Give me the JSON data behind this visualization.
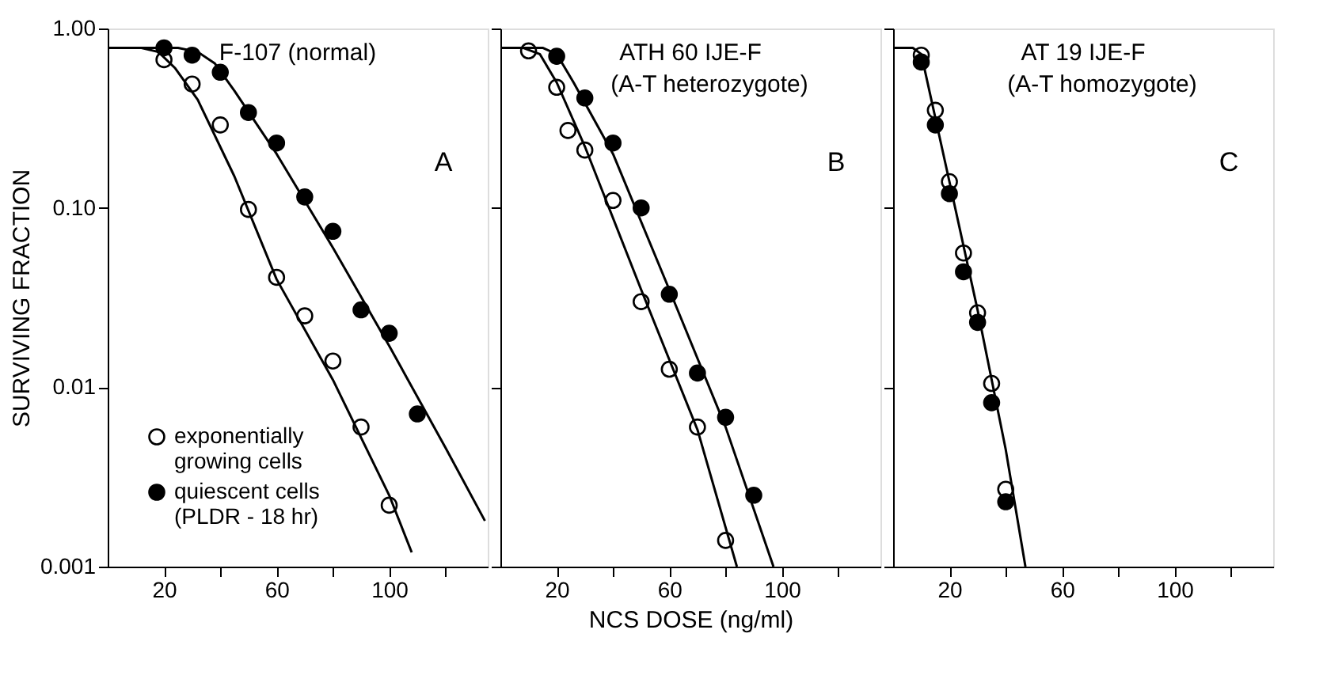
{
  "chart_data": [
    {
      "type": "scatter",
      "title": "F-107 (normal)",
      "annotations": [
        "A"
      ],
      "ylabel": "SURVIVING  FRACTION",
      "log": true,
      "grid": false,
      "legend": "bottom left",
      "marker": "circle",
      "xlim": [
        0,
        135
      ],
      "xticks": [
        20,
        {
          "value": 40,
          "label": null
        },
        60,
        {
          "value": 80,
          "label": null
        },
        100,
        {
          "value": 120,
          "label": null
        }
      ],
      "ylim": [
        0.001,
        1
      ],
      "yticks": [
        {
          "value": 0.001,
          "label": "0.001"
        },
        {
          "value": 0.01,
          "label": "0.01"
        },
        {
          "value": 0.1,
          "label": "0.10"
        },
        {
          "value": 1,
          "label": "1.00"
        }
      ],
      "series": [
        {
          "name": "exponentially growing cells",
          "color": "#ffffff",
          "x": [
            20,
            30,
            40,
            50,
            60,
            70,
            80,
            90,
            100
          ],
          "values": [
            0.67,
            0.49,
            0.29,
            0.098,
            0.041,
            0.025,
            0.014,
            0.006,
            0.0022
          ]
        },
        {
          "name": "quiescent cells (PLDR - 18 hr)",
          "color": "#000000",
          "x": [
            20,
            30,
            40,
            50,
            60,
            70,
            80,
            90,
            100,
            110
          ],
          "values": [
            0.78,
            0.71,
            0.57,
            0.34,
            0.23,
            0.115,
            0.074,
            0.027,
            0.02,
            0.0071
          ]
        },
        {
          "type": "line",
          "marker": "none",
          "color": "#000000",
          "x": [
            0,
            12,
            18,
            24,
            32,
            45,
            60,
            80,
            100,
            108
          ],
          "values": [
            0.78,
            0.78,
            0.74,
            0.6,
            0.4,
            0.15,
            0.04,
            0.011,
            0.0025,
            0.0012
          ]
        },
        {
          "type": "line",
          "marker": "none",
          "color": "#000000",
          "x": [
            0,
            25,
            32,
            38,
            45,
            60,
            80,
            100,
            120,
            134
          ],
          "values": [
            0.78,
            0.78,
            0.74,
            0.64,
            0.45,
            0.2,
            0.06,
            0.017,
            0.0046,
            0.0018
          ]
        }
      ]
    },
    {
      "type": "scatter",
      "title": "ATH 60 IJE-F",
      "subtitle": "(A-T heterozygote)",
      "annotations": [
        "B"
      ],
      "xlabel": "NCS     DOSE     (ng/ml)",
      "log": true,
      "grid": false,
      "marker": "circle",
      "tick_labels": "x",
      "xlim": [
        0,
        135
      ],
      "xticks": [
        20,
        {
          "value": 40,
          "label": null
        },
        60,
        {
          "value": 80,
          "label": null
        },
        100,
        {
          "value": 120,
          "label": null
        }
      ],
      "ylim": [
        0.001,
        1
      ],
      "yticks": [
        {
          "value": 0.001,
          "label": null
        },
        {
          "value": 0.01,
          "label": null
        },
        {
          "value": 0.1,
          "label": null
        },
        {
          "value": 1,
          "label": null
        }
      ],
      "series": [
        {
          "color": "#ffffff",
          "x": [
            10,
            20,
            24,
            30,
            40,
            50,
            60,
            70,
            80
          ],
          "values": [
            0.75,
            0.47,
            0.27,
            0.21,
            0.11,
            0.03,
            0.0126,
            0.006,
            0.0014
          ]
        },
        {
          "color": "#000000",
          "x": [
            20,
            30,
            40,
            50,
            60,
            70,
            80,
            90
          ],
          "values": [
            0.7,
            0.41,
            0.23,
            0.1,
            0.033,
            0.012,
            0.0068,
            0.0025
          ]
        },
        {
          "type": "line",
          "marker": "none",
          "color": "#000000",
          "x": [
            0,
            8,
            14,
            20,
            30,
            50,
            70,
            84
          ],
          "values": [
            0.78,
            0.78,
            0.72,
            0.5,
            0.22,
            0.035,
            0.0058,
            0.001
          ]
        },
        {
          "type": "line",
          "marker": "none",
          "color": "#000000",
          "x": [
            0,
            15,
            20,
            26,
            40,
            60,
            80,
            97
          ],
          "values": [
            0.78,
            0.78,
            0.72,
            0.5,
            0.2,
            0.035,
            0.006,
            0.001
          ]
        }
      ]
    },
    {
      "type": "scatter",
      "title": "AT 19 IJE-F",
      "subtitle": "(A-T homozygote)",
      "annotations": [
        "C"
      ],
      "log": true,
      "grid": false,
      "marker": "circle",
      "tick_labels": "x",
      "xlim": [
        0,
        135
      ],
      "xticks": [
        20,
        {
          "value": 40,
          "label": null
        },
        60,
        {
          "value": 80,
          "label": null
        },
        100,
        {
          "value": 120,
          "label": null
        }
      ],
      "ylim": [
        0.001,
        1
      ],
      "yticks": [
        {
          "value": 0.001,
          "label": null
        },
        {
          "value": 0.01,
          "label": null
        },
        {
          "value": 0.1,
          "label": null
        },
        {
          "value": 1,
          "label": null
        }
      ],
      "series": [
        {
          "color": "#ffffff",
          "x": [
            10,
            15,
            20,
            25,
            30,
            35,
            40
          ],
          "values": [
            0.71,
            0.35,
            0.14,
            0.056,
            0.026,
            0.0105,
            0.0027
          ]
        },
        {
          "color": "#000000",
          "x": [
            10,
            15,
            20,
            25,
            30,
            35,
            40
          ],
          "values": [
            0.65,
            0.29,
            0.12,
            0.044,
            0.023,
            0.0082,
            0.0023
          ]
        },
        {
          "type": "line",
          "marker": "none",
          "color": "#000000",
          "x": [
            0,
            7,
            10,
            20,
            30,
            40,
            47
          ],
          "values": [
            0.78,
            0.78,
            0.72,
            0.14,
            0.027,
            0.0045,
            0.001
          ]
        }
      ]
    }
  ]
}
